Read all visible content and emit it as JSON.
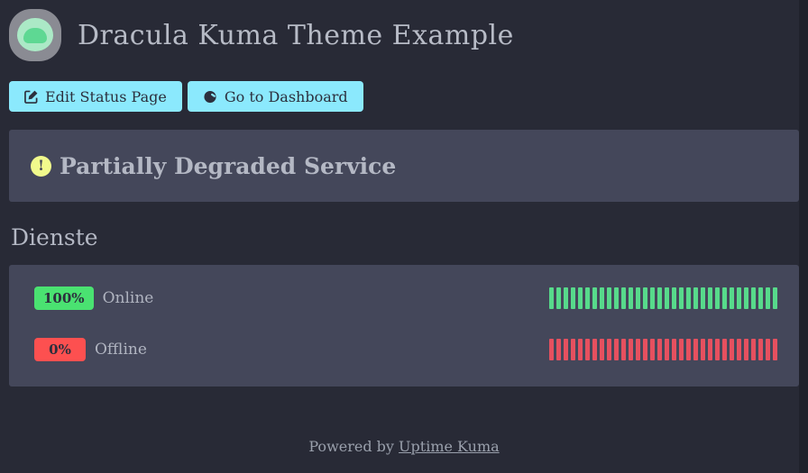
{
  "header": {
    "title": "Dracula Kuma Theme Example",
    "logo_icon": "uptime-kuma-logo"
  },
  "buttons": {
    "edit_label": "Edit Status Page",
    "edit_icon": "pen-to-square-icon",
    "dashboard_label": "Go to Dashboard",
    "dashboard_icon": "gauge-icon"
  },
  "banner": {
    "icon": "exclamation-circle-icon",
    "icon_glyph": "!",
    "text": "Partially Degraded Service"
  },
  "services": {
    "heading": "Dienste",
    "monitors": [
      {
        "uptime_badge": "100%",
        "name": "Online",
        "status": "up",
        "beat_count": 32
      },
      {
        "uptime_badge": "0%",
        "name": "Offline",
        "status": "down",
        "beat_count": 32
      }
    ]
  },
  "footer": {
    "powered_by": "Powered by",
    "link_label": "Uptime Kuma"
  },
  "colors": {
    "background": "#282a36",
    "panel": "#44475a",
    "button_bg": "#8be9fd",
    "button_text": "#2c2f3d",
    "yellow": "#f1fa8c",
    "up_badge": "#4ae271",
    "down_badge": "#fd5050",
    "up_beat": "#57da8b",
    "down_beat": "#e6505f",
    "heading_text": "#b4b8c4"
  }
}
